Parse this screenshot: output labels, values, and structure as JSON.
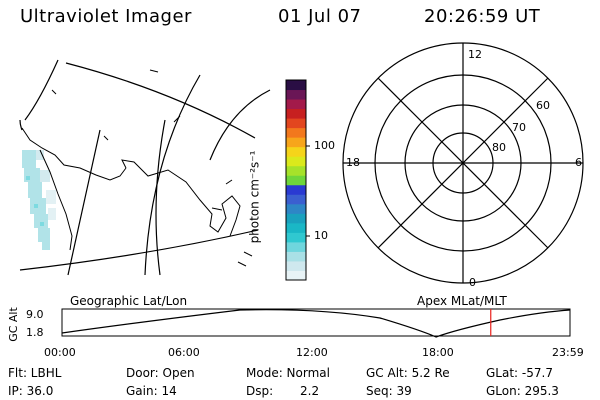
{
  "header": {
    "instrument": "Ultraviolet Imager",
    "date": "01 Jul 07",
    "time": "20:26:59 UT"
  },
  "colorbar": {
    "label": "photon cm⁻²s⁻¹",
    "tick_100": "100",
    "tick_10": "10",
    "colors": [
      "#e8f3f6",
      "#cfe8ee",
      "#a9e0e6",
      "#6fd6dd",
      "#30c8d0",
      "#1ab7c6",
      "#1aa1be",
      "#2e86c6",
      "#3b5fd0",
      "#2a3ad2",
      "#6fd63b",
      "#a6e22a",
      "#dbe91c",
      "#f5d41a",
      "#f7a51b",
      "#f2781d",
      "#e2461f",
      "#c72020",
      "#a31a4a",
      "#6a1656",
      "#2a0e44"
    ]
  },
  "polar": {
    "mlt_labels": [
      "12",
      "18",
      "6",
      "0"
    ],
    "lat_labels": [
      "60",
      "70",
      "80"
    ]
  },
  "timeline": {
    "left_title": "Geographic Lat/Lon",
    "right_title": "Apex  MLat/MLT",
    "axis_label": "GC Alt",
    "y_max": "9.0",
    "y_min": "1.8",
    "x_ticks": [
      "00:00",
      "06:00",
      "12:00",
      "18:00",
      "23:59"
    ],
    "marker_time_fraction": 0.844,
    "marker_color": "#e8201c"
  },
  "footer": {
    "flt": "Flt: LBHL",
    "door": "Door: Open",
    "mode": "Mode: Normal",
    "gc_alt": "GC Alt: 5.2 Re",
    "glat": "GLat: -57.7",
    "ip": "IP: 36.0",
    "gain": "Gain: 14",
    "dsp_label": "Dsp:",
    "dsp_value": "2.2",
    "seq": "Seq: 39",
    "glon": "GLon: 295.3"
  }
}
